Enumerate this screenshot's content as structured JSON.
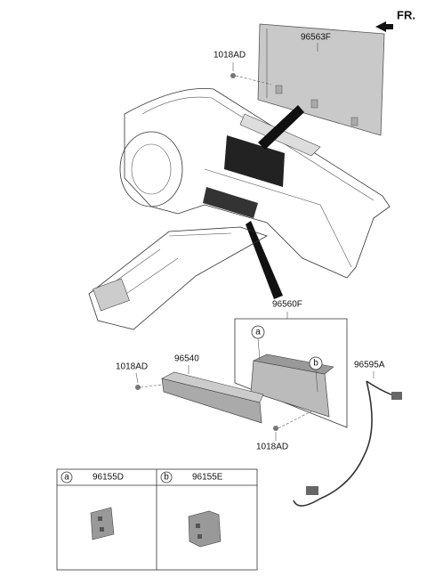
{
  "direction": "FR.",
  "parts": [
    {
      "label": "96563F"
    },
    {
      "label": "1018AD"
    },
    {
      "label": "96560F"
    },
    {
      "label": "96540"
    },
    {
      "label": "1018AD"
    },
    {
      "label": "96595A"
    },
    {
      "label": "1018AD"
    }
  ],
  "callouts": [
    "a",
    "b"
  ],
  "legend_table": {
    "columns": [
      {
        "key": "a",
        "part": "96155D"
      },
      {
        "key": "b",
        "part": "96155E"
      }
    ]
  }
}
